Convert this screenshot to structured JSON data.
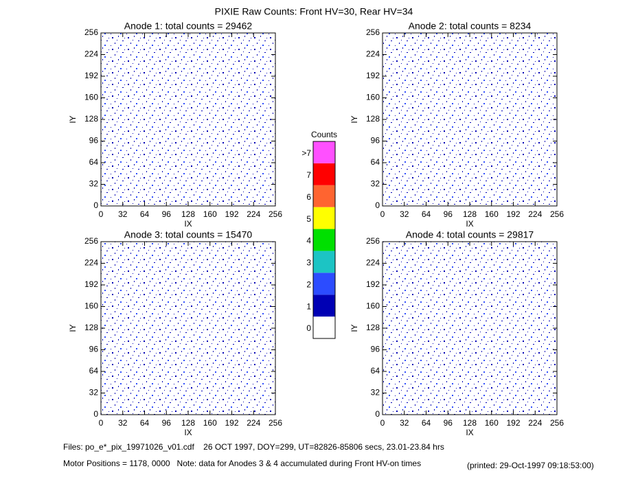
{
  "title": "PIXIE Raw Counts:  Front HV=30, Rear HV=34",
  "chart_data": [
    {
      "type": "heatmap",
      "title": "Anode 1: total counts = 29462",
      "x_label": "IX",
      "y_label": "IY",
      "xlim": [
        0,
        256
      ],
      "ylim": [
        0,
        256
      ],
      "xticks": [
        0,
        32,
        64,
        96,
        128,
        160,
        192,
        224,
        256
      ],
      "yticks": [
        0,
        32,
        64,
        96,
        128,
        160,
        192,
        224,
        256
      ]
    },
    {
      "type": "heatmap",
      "title": "Anode 2: total counts = 8234",
      "x_label": "IX",
      "y_label": "IY",
      "xlim": [
        0,
        256
      ],
      "ylim": [
        0,
        256
      ],
      "xticks": [
        0,
        32,
        64,
        96,
        128,
        160,
        192,
        224,
        256
      ],
      "yticks": [
        0,
        32,
        64,
        96,
        128,
        160,
        192,
        224,
        256
      ]
    },
    {
      "type": "heatmap",
      "title": "Anode 3: total counts = 15470",
      "x_label": "IX",
      "y_label": "IY",
      "xlim": [
        0,
        256
      ],
      "ylim": [
        0,
        256
      ],
      "xticks": [
        0,
        32,
        64,
        96,
        128,
        160,
        192,
        224,
        256
      ],
      "yticks": [
        0,
        32,
        64,
        96,
        128,
        160,
        192,
        224,
        256
      ]
    },
    {
      "type": "heatmap",
      "title": "Anode 4: total counts = 29817",
      "x_label": "IX",
      "y_label": "IY",
      "xlim": [
        0,
        256
      ],
      "ylim": [
        0,
        256
      ],
      "xticks": [
        0,
        32,
        64,
        96,
        128,
        160,
        192,
        224,
        256
      ],
      "yticks": [
        0,
        32,
        64,
        96,
        128,
        160,
        192,
        224,
        256
      ]
    }
  ],
  "colorbar": {
    "title": "Counts",
    "ticks": [
      0,
      1,
      2,
      3,
      4,
      5,
      6,
      7,
      {
        "value": 8,
        "label": ">7"
      }
    ],
    "colors": [
      "#ffffff",
      "#0000b4",
      "#2c4cff",
      "#1cc4c4",
      "#00e000",
      "#ffff00",
      "#ff6430",
      "#ff0000",
      "#ff50ff"
    ]
  },
  "footer": {
    "files": "Files: po_e*_pix_19971026_v01.cdf    26 OCT 1997, DOY=299, UT=82826-85806 secs, 23.01-23.84 hrs",
    "motor": "Motor Positions = 1178, 0000   Note: data for Anodes 3 & 4 accumulated during Front HV-on times",
    "printed": "(printed: 29-Oct-1997 09:18:53:00)"
  }
}
